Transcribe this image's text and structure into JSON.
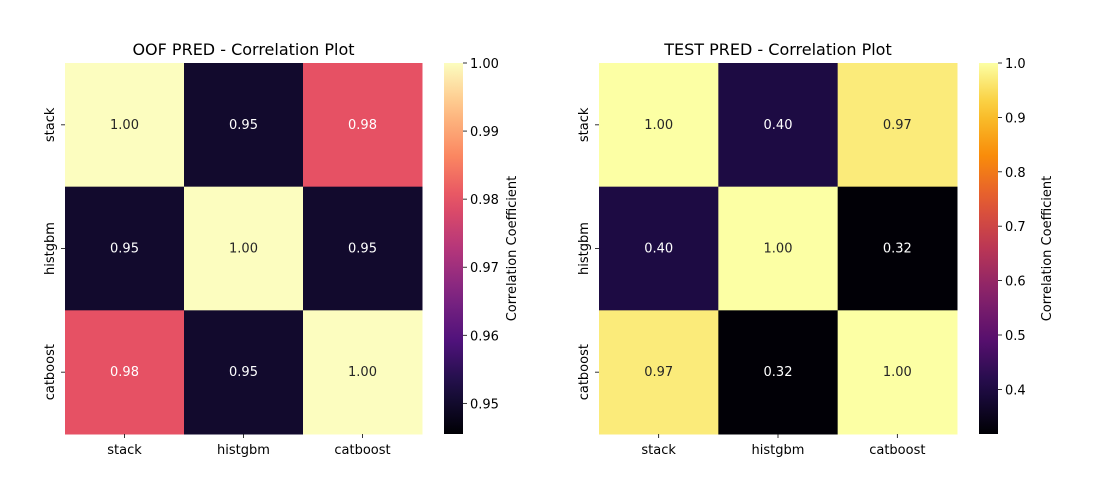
{
  "chart_data": [
    {
      "type": "heatmap",
      "title": "OOF PRED - Correlation Plot",
      "x_labels": [
        "stack",
        "histgbm",
        "catboost"
      ],
      "y_labels": [
        "stack",
        "histgbm",
        "catboost"
      ],
      "values": [
        [
          1.0,
          0.95,
          0.98
        ],
        [
          0.95,
          1.0,
          0.95
        ],
        [
          0.98,
          0.95,
          1.0
        ]
      ],
      "value_labels": [
        [
          "1.00",
          "0.95",
          "0.98"
        ],
        [
          "0.95",
          "1.00",
          "0.95"
        ],
        [
          "0.98",
          "0.95",
          "1.00"
        ]
      ],
      "colormap": "magma",
      "colorbar": {
        "label": "Correlation Coefficient",
        "range": [
          0.9455,
          1.0
        ],
        "ticks": [
          0.95,
          0.96,
          0.97,
          0.98,
          0.99,
          1.0
        ],
        "tick_labels": [
          "0.95",
          "0.96",
          "0.97",
          "0.98",
          "0.99",
          "1.00"
        ]
      }
    },
    {
      "type": "heatmap",
      "title": "TEST PRED - Correlation Plot",
      "x_labels": [
        "stack",
        "histgbm",
        "catboost"
      ],
      "y_labels": [
        "stack",
        "histgbm",
        "catboost"
      ],
      "values": [
        [
          1.0,
          0.4,
          0.97
        ],
        [
          0.4,
          1.0,
          0.32
        ],
        [
          0.97,
          0.32,
          1.0
        ]
      ],
      "value_labels": [
        [
          "1.00",
          "0.40",
          "0.97"
        ],
        [
          "0.40",
          "1.00",
          "0.32"
        ],
        [
          "0.97",
          "0.32",
          "1.00"
        ]
      ],
      "colormap": "inferno",
      "colorbar": {
        "label": "Correlation Coefficient",
        "range": [
          0.318,
          1.0
        ],
        "ticks": [
          0.4,
          0.5,
          0.6,
          0.7,
          0.8,
          0.9,
          1.0
        ],
        "tick_labels": [
          "0.4",
          "0.5",
          "0.6",
          "0.7",
          "0.8",
          "0.9",
          "1.0"
        ]
      }
    }
  ]
}
